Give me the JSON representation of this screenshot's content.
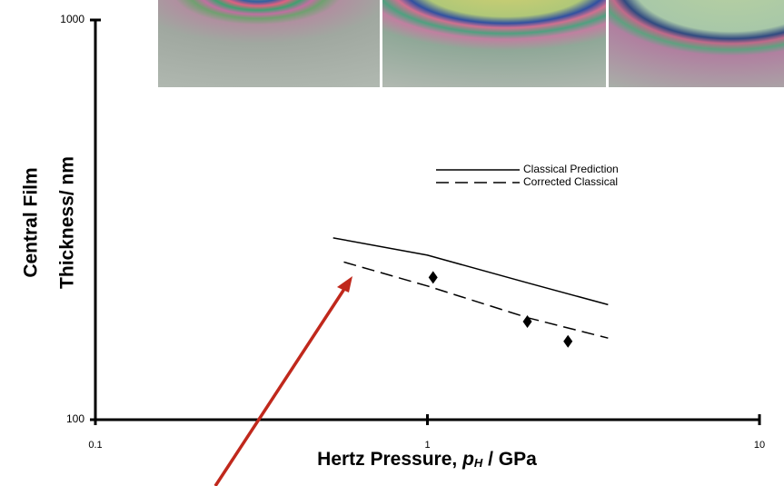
{
  "chart_data": {
    "type": "line",
    "xlabel": [
      "Hertz Pressure, ",
      "p",
      "H",
      " / GPa"
    ],
    "ylabel": [
      "Central Film",
      "Thickness/ nm"
    ],
    "xlog": true,
    "ylog": true,
    "xlim": [
      0.1,
      10
    ],
    "ylim": [
      100,
      1000
    ],
    "xticks": [
      0.1,
      1,
      10
    ],
    "yticks": [
      100,
      1000
    ],
    "series": [
      {
        "name": "Classical Prediction",
        "style": "solid",
        "color": "#000000",
        "x": [
          0.52,
          1,
          2,
          3.5
        ],
        "values": [
          285,
          258,
          220,
          194
        ]
      },
      {
        "name": "Corrected Classical",
        "style": "dashed",
        "color": "#000000",
        "x": [
          0.56,
          1,
          2,
          3.5
        ],
        "values": [
          248,
          216,
          180,
          160
        ]
      },
      {
        "style": "marker",
        "color": "#000000",
        "x": [
          1.04,
          2,
          2.65
        ],
        "values": [
          227,
          176,
          157
        ]
      }
    ]
  }
}
